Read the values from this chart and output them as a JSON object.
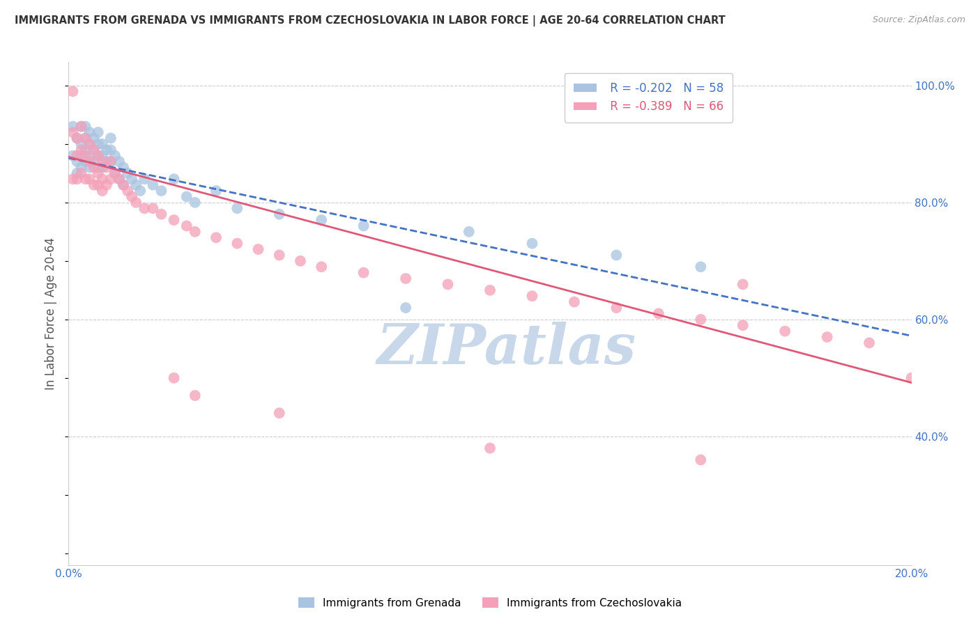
{
  "title": "IMMIGRANTS FROM GRENADA VS IMMIGRANTS FROM CZECHOSLOVAKIA IN LABOR FORCE | AGE 20-64 CORRELATION CHART",
  "source": "Source: ZipAtlas.com",
  "ylabel": "In Labor Force | Age 20-64",
  "xlim": [
    0.0,
    0.2
  ],
  "ylim": [
    0.18,
    1.04
  ],
  "grenada_R": -0.202,
  "grenada_N": 58,
  "czech_R": -0.389,
  "czech_N": 66,
  "grenada_color": "#a8c4e0",
  "czech_color": "#f4a0b8",
  "grenada_line_color": "#4472c4",
  "czech_line_color": "#e05878",
  "background_color": "#ffffff",
  "watermark": "ZIPatlas",
  "watermark_color": "#c8d8ea",
  "legend_label_grenada": "Immigrants from Grenada",
  "legend_label_czech": "Immigrants from Czechoslovakia",
  "grenada_line_x0": 0.0,
  "grenada_line_y0": 0.876,
  "grenada_line_x1": 0.2,
  "grenada_line_y1": 0.572,
  "czech_line_x0": 0.0,
  "czech_line_y0": 0.878,
  "czech_line_x1": 0.2,
  "czech_line_y1": 0.492,
  "grenada_x": [
    0.001,
    0.001,
    0.002,
    0.002,
    0.002,
    0.003,
    0.003,
    0.003,
    0.003,
    0.004,
    0.004,
    0.004,
    0.004,
    0.005,
    0.005,
    0.005,
    0.005,
    0.006,
    0.006,
    0.006,
    0.007,
    0.007,
    0.007,
    0.007,
    0.008,
    0.008,
    0.008,
    0.009,
    0.009,
    0.01,
    0.01,
    0.01,
    0.011,
    0.011,
    0.012,
    0.012,
    0.013,
    0.013,
    0.014,
    0.015,
    0.016,
    0.017,
    0.018,
    0.02,
    0.022,
    0.025,
    0.028,
    0.03,
    0.035,
    0.04,
    0.05,
    0.06,
    0.07,
    0.08,
    0.095,
    0.11,
    0.13,
    0.15
  ],
  "grenada_y": [
    0.93,
    0.88,
    0.91,
    0.87,
    0.85,
    0.93,
    0.9,
    0.88,
    0.86,
    0.93,
    0.91,
    0.89,
    0.87,
    0.92,
    0.9,
    0.88,
    0.86,
    0.91,
    0.89,
    0.87,
    0.92,
    0.9,
    0.88,
    0.86,
    0.9,
    0.88,
    0.86,
    0.89,
    0.87,
    0.91,
    0.89,
    0.87,
    0.88,
    0.85,
    0.87,
    0.84,
    0.86,
    0.83,
    0.85,
    0.84,
    0.83,
    0.82,
    0.84,
    0.83,
    0.82,
    0.84,
    0.81,
    0.8,
    0.82,
    0.79,
    0.78,
    0.77,
    0.76,
    0.62,
    0.75,
    0.73,
    0.71,
    0.69
  ],
  "czech_x": [
    0.001,
    0.001,
    0.001,
    0.002,
    0.002,
    0.002,
    0.003,
    0.003,
    0.003,
    0.004,
    0.004,
    0.004,
    0.005,
    0.005,
    0.005,
    0.006,
    0.006,
    0.006,
    0.007,
    0.007,
    0.007,
    0.008,
    0.008,
    0.008,
    0.009,
    0.009,
    0.01,
    0.01,
    0.011,
    0.012,
    0.013,
    0.014,
    0.015,
    0.016,
    0.018,
    0.02,
    0.022,
    0.025,
    0.028,
    0.03,
    0.035,
    0.04,
    0.045,
    0.05,
    0.055,
    0.06,
    0.07,
    0.08,
    0.09,
    0.1,
    0.11,
    0.12,
    0.13,
    0.14,
    0.15,
    0.16,
    0.17,
    0.18,
    0.19,
    0.2,
    0.025,
    0.03,
    0.05,
    0.1,
    0.15,
    0.16
  ],
  "czech_y": [
    0.99,
    0.92,
    0.84,
    0.91,
    0.88,
    0.84,
    0.93,
    0.89,
    0.85,
    0.91,
    0.88,
    0.84,
    0.9,
    0.87,
    0.84,
    0.89,
    0.86,
    0.83,
    0.88,
    0.85,
    0.83,
    0.87,
    0.84,
    0.82,
    0.86,
    0.83,
    0.87,
    0.84,
    0.85,
    0.84,
    0.83,
    0.82,
    0.81,
    0.8,
    0.79,
    0.79,
    0.78,
    0.77,
    0.76,
    0.75,
    0.74,
    0.73,
    0.72,
    0.71,
    0.7,
    0.69,
    0.68,
    0.67,
    0.66,
    0.65,
    0.64,
    0.63,
    0.62,
    0.61,
    0.6,
    0.59,
    0.58,
    0.57,
    0.56,
    0.5,
    0.5,
    0.47,
    0.44,
    0.38,
    0.36,
    0.66
  ]
}
